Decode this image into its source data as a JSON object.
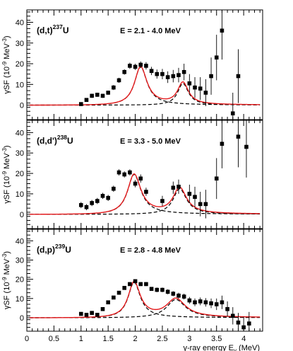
{
  "figure": {
    "xaxis": {
      "label_prefix": "γ-ray energy E",
      "label_sub": "γ",
      "label_suffix": " (MeV)",
      "range": [
        0,
        4.35
      ],
      "ticks": [
        0,
        0.5,
        1,
        1.5,
        2,
        2.5,
        3,
        3.5,
        4
      ]
    },
    "colors": {
      "fit": "#e41a1c",
      "components": "#000000",
      "points": "#000000"
    }
  },
  "chart_data": [
    {
      "type": "scatter",
      "reaction": "(d,t)",
      "isotope_mass": "237",
      "isotope_symbol": "U",
      "energy_label": "E = 2.1 - 4.0 MeV",
      "ylabel": {
        "prefix": "γSF (10",
        "exp": "-9",
        "mid": " MeV",
        "exp2": "-3",
        "suffix": ")"
      },
      "ylim": [
        -7,
        46
      ],
      "yticks": [
        0,
        10,
        20,
        30,
        40
      ],
      "peaks": [
        {
          "e": 2.1,
          "h": 18.5,
          "w": 0.28
        },
        {
          "e": 2.88,
          "h": 10.5,
          "w": 0.24
        }
      ],
      "points": [
        {
          "x": 1.0,
          "y": 0.5,
          "err": 0.8
        },
        {
          "x": 1.1,
          "y": 2.5,
          "err": 0.8
        },
        {
          "x": 1.2,
          "y": 4.5,
          "err": 1.0
        },
        {
          "x": 1.3,
          "y": 5.0,
          "err": 1.0
        },
        {
          "x": 1.4,
          "y": 4.5,
          "err": 1.0
        },
        {
          "x": 1.5,
          "y": 6.0,
          "err": 1.0
        },
        {
          "x": 1.6,
          "y": 8.5,
          "err": 1.2
        },
        {
          "x": 1.7,
          "y": 12.0,
          "err": 1.2
        },
        {
          "x": 1.8,
          "y": 16.0,
          "err": 1.3
        },
        {
          "x": 1.9,
          "y": 19.0,
          "err": 1.5
        },
        {
          "x": 2.0,
          "y": 18.5,
          "err": 1.5
        },
        {
          "x": 2.1,
          "y": 19.5,
          "err": 1.6
        },
        {
          "x": 2.2,
          "y": 19.0,
          "err": 1.8
        },
        {
          "x": 2.3,
          "y": 16.5,
          "err": 2.0
        },
        {
          "x": 2.4,
          "y": 15.0,
          "err": 2.2
        },
        {
          "x": 2.5,
          "y": 15.0,
          "err": 2.5
        },
        {
          "x": 2.6,
          "y": 13.5,
          "err": 2.8
        },
        {
          "x": 2.7,
          "y": 14.0,
          "err": 3.0
        },
        {
          "x": 2.8,
          "y": 14.5,
          "err": 3.5
        },
        {
          "x": 2.9,
          "y": 16.0,
          "err": 4.0
        },
        {
          "x": 3.0,
          "y": 10.5,
          "err": 4.5
        },
        {
          "x": 3.1,
          "y": 8.5,
          "err": 5.0
        },
        {
          "x": 3.2,
          "y": 8.0,
          "err": 5.5
        },
        {
          "x": 3.3,
          "y": 6.0,
          "err": 6.5
        },
        {
          "x": 3.4,
          "y": 14.0,
          "err": 9.0
        },
        {
          "x": 3.5,
          "y": 23.0,
          "err": 11.0
        },
        {
          "x": 3.6,
          "y": 36.0,
          "err": 14.0
        },
        {
          "x": 3.8,
          "y": -4.0,
          "err": 10.0
        },
        {
          "x": 3.9,
          "y": 14.0,
          "err": 13.0
        }
      ]
    },
    {
      "type": "scatter",
      "reaction": "(d,d')",
      "isotope_mass": "238",
      "isotope_symbol": "U",
      "energy_label": "E = 3.3 - 5.0 MeV",
      "ylabel": {
        "prefix": "γSF (10",
        "exp": "-9",
        "mid": " MeV",
        "exp2": "-3",
        "suffix": ")"
      },
      "ylim": [
        -7,
        46
      ],
      "yticks": [
        0,
        10,
        20,
        30,
        40
      ],
      "peaks": [
        {
          "e": 1.98,
          "h": 19.5,
          "w": 0.3
        },
        {
          "e": 2.82,
          "h": 12.5,
          "w": 0.3
        }
      ],
      "points": [
        {
          "x": 1.0,
          "y": 4.5,
          "err": 1.5
        },
        {
          "x": 1.1,
          "y": 3.5,
          "err": 1.5
        },
        {
          "x": 1.2,
          "y": 5.5,
          "err": 1.5
        },
        {
          "x": 1.3,
          "y": 6.5,
          "err": 1.5
        },
        {
          "x": 1.4,
          "y": 9.0,
          "err": 1.5
        },
        {
          "x": 1.5,
          "y": 8.0,
          "err": 1.5
        },
        {
          "x": 1.6,
          "y": 12.5,
          "err": 1.5
        },
        {
          "x": 1.7,
          "y": 20.5,
          "err": 1.5
        },
        {
          "x": 1.8,
          "y": 19.5,
          "err": 1.5
        },
        {
          "x": 1.9,
          "y": 20.5,
          "err": 1.5
        },
        {
          "x": 2.0,
          "y": 15.0,
          "err": 1.8
        },
        {
          "x": 2.1,
          "y": 17.5,
          "err": 2.0
        },
        {
          "x": 2.2,
          "y": 11.0,
          "err": 2.0
        },
        {
          "x": 2.5,
          "y": 6.5,
          "err": 2.5
        },
        {
          "x": 2.7,
          "y": 13.0,
          "err": 3.0
        },
        {
          "x": 2.8,
          "y": 13.5,
          "err": 3.5
        },
        {
          "x": 3.0,
          "y": 10.0,
          "err": 4.5
        },
        {
          "x": 3.1,
          "y": 8.5,
          "err": 5.0
        },
        {
          "x": 3.2,
          "y": 5.0,
          "err": 6.0
        },
        {
          "x": 3.3,
          "y": 5.0,
          "err": 7.0
        },
        {
          "x": 3.5,
          "y": 17.5,
          "err": 10.0
        },
        {
          "x": 3.6,
          "y": 34.5,
          "err": 12.0
        },
        {
          "x": 3.9,
          "y": 38.0,
          "err": 15.0
        },
        {
          "x": 4.05,
          "y": 33.0,
          "err": 15.0
        }
      ]
    },
    {
      "type": "scatter",
      "reaction": "(d,p)",
      "isotope_mass": "239",
      "isotope_symbol": "U",
      "energy_label": "E = 2.8 - 4.8 MeV",
      "ylabel": {
        "prefix": "γSF (10",
        "exp": "-9",
        "mid": " MeV",
        "exp2": "-3",
        "suffix": ")"
      },
      "ylim": [
        -7,
        46
      ],
      "yticks": [
        0,
        10,
        20,
        30,
        40
      ],
      "peaks": [
        {
          "e": 1.98,
          "h": 18.5,
          "w": 0.27
        },
        {
          "e": 2.75,
          "h": 9.5,
          "w": 0.42
        }
      ],
      "points": [
        {
          "x": 1.0,
          "y": 2.0,
          "err": 0.7
        },
        {
          "x": 1.1,
          "y": 1.5,
          "err": 0.7
        },
        {
          "x": 1.2,
          "y": 2.5,
          "err": 0.7
        },
        {
          "x": 1.3,
          "y": 1.5,
          "err": 0.7
        },
        {
          "x": 1.4,
          "y": 4.5,
          "err": 0.8
        },
        {
          "x": 1.5,
          "y": 8.0,
          "err": 0.8
        },
        {
          "x": 1.6,
          "y": 10.5,
          "err": 0.9
        },
        {
          "x": 1.7,
          "y": 13.0,
          "err": 1.0
        },
        {
          "x": 1.8,
          "y": 15.5,
          "err": 1.0
        },
        {
          "x": 1.9,
          "y": 17.5,
          "err": 1.0
        },
        {
          "x": 2.0,
          "y": 19.0,
          "err": 1.0
        },
        {
          "x": 2.1,
          "y": 17.5,
          "err": 1.0
        },
        {
          "x": 2.2,
          "y": 17.5,
          "err": 1.0
        },
        {
          "x": 2.3,
          "y": 15.0,
          "err": 1.0
        },
        {
          "x": 2.4,
          "y": 14.5,
          "err": 1.2
        },
        {
          "x": 2.5,
          "y": 14.5,
          "err": 1.2
        },
        {
          "x": 2.6,
          "y": 13.5,
          "err": 1.3
        },
        {
          "x": 2.7,
          "y": 12.5,
          "err": 1.3
        },
        {
          "x": 2.8,
          "y": 11.5,
          "err": 1.5
        },
        {
          "x": 2.9,
          "y": 11.0,
          "err": 1.5
        },
        {
          "x": 3.0,
          "y": 9.0,
          "err": 1.8
        },
        {
          "x": 3.1,
          "y": 8.0,
          "err": 2.0
        },
        {
          "x": 3.2,
          "y": 8.5,
          "err": 2.0
        },
        {
          "x": 3.3,
          "y": 8.0,
          "err": 2.2
        },
        {
          "x": 3.4,
          "y": 7.5,
          "err": 2.5
        },
        {
          "x": 3.5,
          "y": 7.0,
          "err": 3.0
        },
        {
          "x": 3.6,
          "y": 8.0,
          "err": 3.5
        },
        {
          "x": 3.7,
          "y": 4.5,
          "err": 4.0
        },
        {
          "x": 3.8,
          "y": 1.0,
          "err": 4.5
        },
        {
          "x": 3.9,
          "y": -2.5,
          "err": 5.0
        },
        {
          "x": 4.0,
          "y": -5.0,
          "err": 5.5
        },
        {
          "x": 4.1,
          "y": -3.0,
          "err": 6.0
        }
      ]
    }
  ]
}
